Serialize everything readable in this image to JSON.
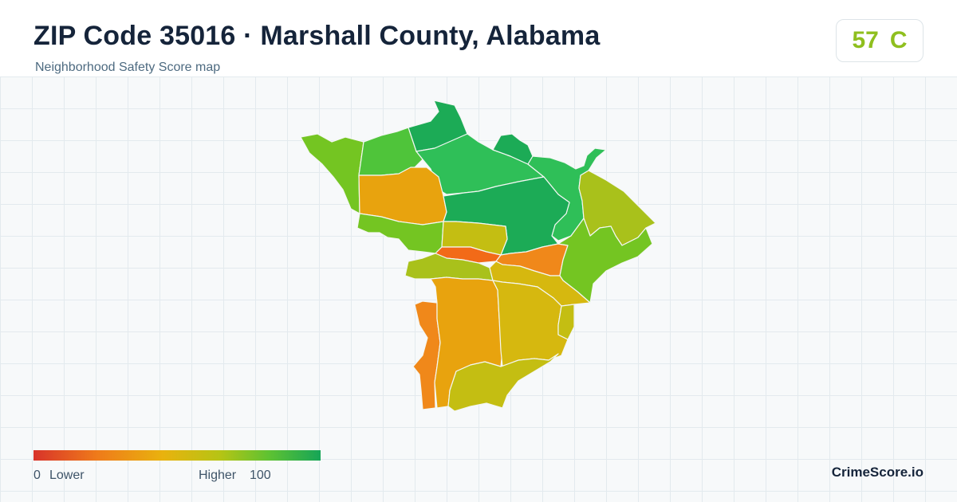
{
  "header": {
    "title": "ZIP Code 35016 · Marshall County, Alabama",
    "subtitle": "Neighborhood Safety Score map"
  },
  "score_badge": {
    "score": "57",
    "grade": "C",
    "color": "#8fbf1e"
  },
  "legend": {
    "low_value": "0",
    "low_label": "Lower",
    "high_label": "Higher",
    "high_value": "100",
    "colors": [
      "#d8332a",
      "#ef7a1a",
      "#e9b20e",
      "#b6c414",
      "#5ec232",
      "#16a557"
    ]
  },
  "brand": "CrimeScore.io",
  "map": {
    "region_colors": {
      "green_dark": "#1cab56",
      "green": "#2fbf58",
      "green_mid": "#4fc43a",
      "lime": "#74c522",
      "yellow_green": "#a9c11b",
      "olive": "#c4be12",
      "yellow": "#d6b80f",
      "amber": "#e8a30e",
      "orange": "#f0881a",
      "orange_red": "#f26a18"
    }
  }
}
